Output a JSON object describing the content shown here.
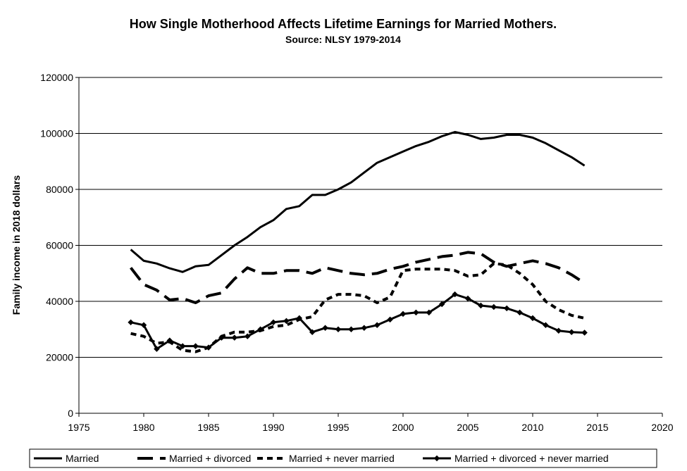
{
  "chart_data": {
    "type": "line",
    "title": "How Single Motherhood Affects Lifetime Earnings for Married Mothers.",
    "subtitle": "Source: NLSY 1979-2014",
    "xlabel": "",
    "ylabel": "Family income in 2018 dollars",
    "xlim": [
      1975,
      2020
    ],
    "ylim": [
      0,
      120000
    ],
    "x_ticks": [
      1975,
      1980,
      1985,
      1990,
      1995,
      2000,
      2005,
      2010,
      2015,
      2020
    ],
    "y_ticks": [
      0,
      20000,
      40000,
      60000,
      80000,
      100000,
      120000
    ],
    "grid": "horizontal",
    "legend_position": "bottom",
    "series": [
      {
        "name": "Married",
        "style": "solid",
        "color": "#000000",
        "x": [
          1979,
          1980,
          1981,
          1982,
          1983,
          1984,
          1985,
          1986,
          1987,
          1988,
          1989,
          1990,
          1991,
          1992,
          1993,
          1994,
          1995,
          1996,
          1997,
          1998,
          1999,
          2000,
          2001,
          2002,
          2003,
          2004,
          2005,
          2006,
          2007,
          2008,
          2009,
          2010,
          2011,
          2012,
          2013,
          2014
        ],
        "values": [
          58500,
          54500,
          53500,
          51800,
          50500,
          52500,
          53000,
          56500,
          60000,
          63000,
          66500,
          69000,
          73000,
          74000,
          78000,
          78000,
          80000,
          82500,
          86000,
          89500,
          91500,
          93500,
          95500,
          97000,
          99000,
          100500,
          99500,
          98000,
          98500,
          99500,
          99500,
          98500,
          96500,
          94000,
          91500,
          88500
        ]
      },
      {
        "name": "Married + divorced",
        "style": "long-dash",
        "color": "#000000",
        "x": [
          1979,
          1980,
          1981,
          1982,
          1983,
          1984,
          1985,
          1986,
          1987,
          1988,
          1989,
          1990,
          1991,
          1992,
          1993,
          1994,
          1995,
          1996,
          1997,
          1998,
          1999,
          2000,
          2001,
          2002,
          2003,
          2004,
          2005,
          2006,
          2007,
          2008,
          2009,
          2010,
          2011,
          2012,
          2013,
          2014
        ],
        "values": [
          52000,
          46000,
          44000,
          40500,
          41000,
          39500,
          42000,
          43000,
          48000,
          52000,
          50000,
          50000,
          51000,
          51000,
          50000,
          52000,
          51000,
          50000,
          49500,
          50000,
          51500,
          52500,
          54000,
          55000,
          56000,
          56500,
          57500,
          57000,
          54000,
          52500,
          53500,
          54500,
          53500,
          52000,
          49500,
          46500
        ]
      },
      {
        "name": "Married + never married",
        "style": "short-dash",
        "color": "#000000",
        "x": [
          1979,
          1980,
          1981,
          1982,
          1983,
          1984,
          1985,
          1986,
          1987,
          1988,
          1989,
          1990,
          1991,
          1992,
          1993,
          1994,
          1995,
          1996,
          1997,
          1998,
          1999,
          2000,
          2001,
          2002,
          2003,
          2004,
          2005,
          2006,
          2007,
          2008,
          2009,
          2010,
          2011,
          2012,
          2013,
          2014
        ],
        "values": [
          28500,
          27500,
          25000,
          25500,
          22500,
          22000,
          23500,
          27500,
          29000,
          29000,
          29500,
          31000,
          31500,
          33500,
          34500,
          40500,
          42500,
          42500,
          42000,
          39500,
          41500,
          51000,
          51500,
          51500,
          51500,
          51000,
          49000,
          49500,
          53500,
          53000,
          50000,
          46000,
          40000,
          37000,
          35000,
          34000
        ]
      },
      {
        "name": "Married + divorced + never married",
        "style": "solid-markers",
        "color": "#000000",
        "x": [
          1979,
          1980,
          1981,
          1982,
          1983,
          1984,
          1985,
          1986,
          1987,
          1988,
          1989,
          1990,
          1991,
          1992,
          1993,
          1994,
          1995,
          1996,
          1997,
          1998,
          1999,
          2000,
          2001,
          2002,
          2003,
          2004,
          2005,
          2006,
          2007,
          2008,
          2009,
          2010,
          2011,
          2012,
          2013,
          2014
        ],
        "values": [
          32500,
          31500,
          23000,
          26000,
          24000,
          24000,
          23500,
          27000,
          27000,
          27500,
          30000,
          32500,
          33000,
          34000,
          29000,
          30500,
          30000,
          30000,
          30500,
          31500,
          33500,
          35500,
          36000,
          36000,
          39000,
          42500,
          41000,
          38500,
          38000,
          37500,
          36000,
          34000,
          31500,
          29500,
          29000,
          28800
        ]
      }
    ]
  }
}
